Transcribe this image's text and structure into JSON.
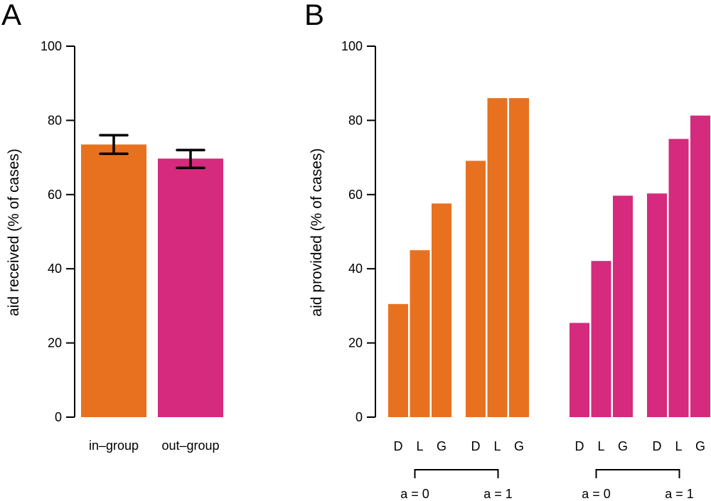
{
  "chart_data": [
    {
      "panel": "A",
      "type": "bar",
      "title": "",
      "xlabel": "",
      "ylabel": "aid received (% of cases)",
      "ylim": [
        0,
        100
      ],
      "yticks": [
        0,
        20,
        40,
        60,
        80,
        100
      ],
      "grid": false,
      "categories": [
        "in–group",
        "out–group"
      ],
      "values": [
        73.5,
        69.7
      ],
      "error_bars": [
        {
          "low": 71.0,
          "high": 76.0
        },
        {
          "low": 67.2,
          "high": 72.0
        }
      ],
      "colors": [
        "#E8711F",
        "#D52A7D"
      ]
    },
    {
      "panel": "B",
      "type": "bar",
      "title": "",
      "xlabel": "",
      "ylabel": "aid provided (% of cases)",
      "ylim": [
        0,
        100
      ],
      "yticks": [
        0,
        20,
        40,
        60,
        80,
        100
      ],
      "grid": false,
      "groups": [
        {
          "name": "in-group",
          "color": "#E8711F",
          "subgroups": [
            {
              "label": "a = 0",
              "categories": [
                "D",
                "L",
                "G"
              ],
              "values": [
                30.5,
                45.0,
                57.6
              ]
            },
            {
              "label": "a = 1",
              "categories": [
                "D",
                "L",
                "G"
              ],
              "values": [
                69.1,
                86.0,
                86.0
              ]
            }
          ]
        },
        {
          "name": "out-group",
          "color": "#D52A7D",
          "subgroups": [
            {
              "label": "a = 0",
              "categories": [
                "D",
                "L",
                "G"
              ],
              "values": [
                25.4,
                42.1,
                59.7
              ]
            },
            {
              "label": "a = 1",
              "categories": [
                "D",
                "L",
                "G"
              ],
              "values": [
                60.3,
                75.0,
                81.3
              ]
            }
          ]
        }
      ]
    }
  ]
}
